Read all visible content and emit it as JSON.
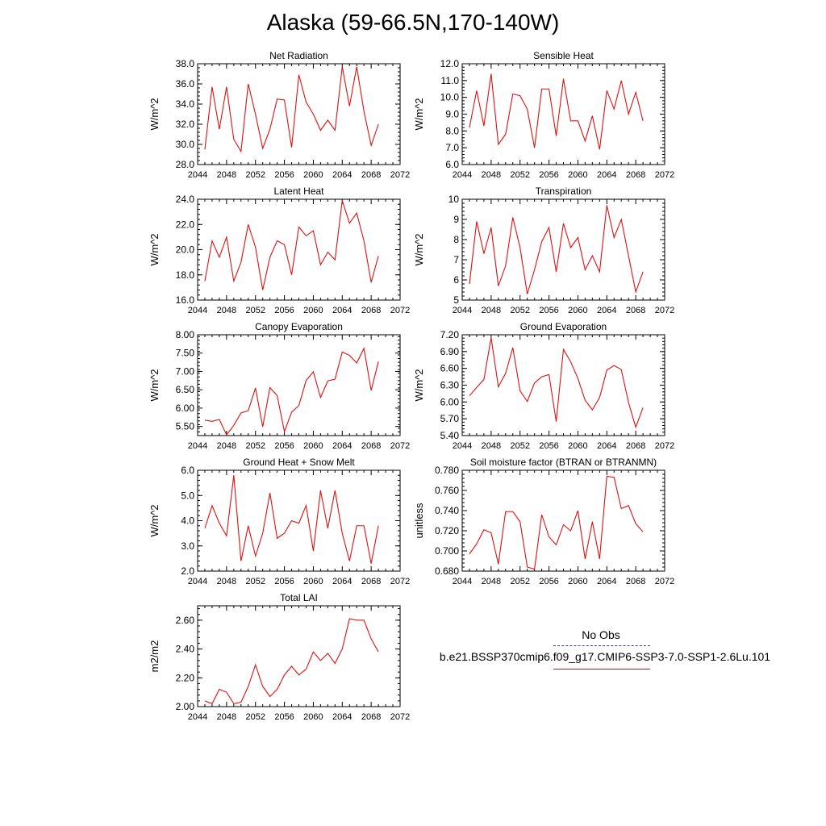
{
  "figure": {
    "title": "Alaska (59-66.5N,170-140W)"
  },
  "legend": {
    "obs_label": "No Obs",
    "model_label": "b.e21.BSSP370cmip6.f09_g17.CMIP6-SSP3-7.0-SSP1-2.6Lu.101",
    "obs_color": "#3a3aa0",
    "model_color": "#e01010"
  },
  "chart_data": [
    {
      "type": "line",
      "title": "Net Radiation",
      "ylabel": "W/m^2",
      "xlim": [
        2044,
        2072
      ],
      "xticks": [
        2044,
        2048,
        2052,
        2056,
        2060,
        2064,
        2068,
        2072
      ],
      "ylim": [
        28.0,
        38.0
      ],
      "yticks": [
        28.0,
        30.0,
        32.0,
        34.0,
        36.0,
        38.0
      ],
      "yfmt": 1,
      "series": [
        {
          "color": "#e01010",
          "x": [
            2045,
            2046,
            2047,
            2048,
            2049,
            2050,
            2051,
            2052,
            2053,
            2054,
            2055,
            2056,
            2057,
            2058,
            2059,
            2060,
            2061,
            2062,
            2063,
            2064,
            2065,
            2066,
            2067,
            2068,
            2069
          ],
          "values": [
            29.5,
            35.7,
            31.5,
            35.7,
            30.5,
            29.3,
            36.0,
            33.0,
            29.6,
            31.5,
            34.5,
            34.4,
            29.7,
            36.9,
            34.2,
            33.0,
            31.4,
            32.4,
            31.4,
            37.7,
            33.8,
            37.7,
            33.3,
            29.9,
            32.0
          ]
        }
      ]
    },
    {
      "type": "line",
      "title": "Sensible Heat",
      "ylabel": "W/m^2",
      "xlim": [
        2044,
        2072
      ],
      "xticks": [
        2044,
        2048,
        2052,
        2056,
        2060,
        2064,
        2068,
        2072
      ],
      "ylim": [
        6.0,
        12.0
      ],
      "yticks": [
        6.0,
        7.0,
        8.0,
        9.0,
        10.0,
        11.0,
        12.0
      ],
      "yfmt": 1,
      "series": [
        {
          "color": "#e01010",
          "x": [
            2045,
            2046,
            2047,
            2048,
            2049,
            2050,
            2051,
            2052,
            2053,
            2054,
            2055,
            2056,
            2057,
            2058,
            2059,
            2060,
            2061,
            2062,
            2063,
            2064,
            2065,
            2066,
            2067,
            2068,
            2069
          ],
          "values": [
            8.2,
            10.4,
            8.3,
            11.4,
            7.2,
            7.8,
            10.2,
            10.1,
            9.3,
            7.0,
            10.5,
            10.5,
            7.7,
            11.1,
            8.6,
            8.6,
            7.4,
            8.9,
            6.9,
            10.4,
            9.3,
            11.0,
            9.0,
            10.3,
            8.6
          ]
        }
      ]
    },
    {
      "type": "line",
      "title": "Latent Heat",
      "ylabel": "W/m^2",
      "xlim": [
        2044,
        2072
      ],
      "xticks": [
        2044,
        2048,
        2052,
        2056,
        2060,
        2064,
        2068,
        2072
      ],
      "ylim": [
        16.0,
        24.0
      ],
      "yticks": [
        16.0,
        18.0,
        20.0,
        22.0,
        24.0
      ],
      "yfmt": 1,
      "series": [
        {
          "color": "#e01010",
          "x": [
            2045,
            2046,
            2047,
            2048,
            2049,
            2050,
            2051,
            2052,
            2053,
            2054,
            2055,
            2056,
            2057,
            2058,
            2059,
            2060,
            2061,
            2062,
            2063,
            2064,
            2065,
            2066,
            2067,
            2068,
            2069
          ],
          "values": [
            17.5,
            20.7,
            19.4,
            21.0,
            17.5,
            19.0,
            22.0,
            20.2,
            16.8,
            19.4,
            20.7,
            20.4,
            18.0,
            21.8,
            21.1,
            21.5,
            18.8,
            19.8,
            19.2,
            23.9,
            22.1,
            22.9,
            20.7,
            17.4,
            19.5
          ]
        }
      ]
    },
    {
      "type": "line",
      "title": "Transpiration",
      "ylabel": "W/m^2",
      "xlim": [
        2044,
        2072
      ],
      "xticks": [
        2044,
        2048,
        2052,
        2056,
        2060,
        2064,
        2068,
        2072
      ],
      "ylim": [
        5,
        10
      ],
      "yticks": [
        5,
        6,
        7,
        8,
        9,
        10
      ],
      "yfmt": 0,
      "series": [
        {
          "color": "#e01010",
          "x": [
            2045,
            2046,
            2047,
            2048,
            2049,
            2050,
            2051,
            2052,
            2053,
            2054,
            2055,
            2056,
            2057,
            2058,
            2059,
            2060,
            2061,
            2062,
            2063,
            2064,
            2065,
            2066,
            2067,
            2068,
            2069
          ],
          "values": [
            5.8,
            8.9,
            7.3,
            8.6,
            5.7,
            6.7,
            9.1,
            7.6,
            5.3,
            6.5,
            7.9,
            8.6,
            6.4,
            8.8,
            7.6,
            8.1,
            6.5,
            7.2,
            6.4,
            9.7,
            8.1,
            9.0,
            7.2,
            5.4,
            6.4
          ]
        }
      ]
    },
    {
      "type": "line",
      "title": "Canopy Evaporation",
      "ylabel": "W/m^2",
      "xlim": [
        2044,
        2072
      ],
      "xticks": [
        2044,
        2048,
        2052,
        2056,
        2060,
        2064,
        2068,
        2072
      ],
      "ylim": [
        5.25,
        8.0
      ],
      "yticks": [
        5.5,
        6.0,
        6.5,
        7.0,
        7.5,
        8.0
      ],
      "yfmt": 2,
      "series": [
        {
          "color": "#e01010",
          "x": [
            2045,
            2046,
            2047,
            2048,
            2049,
            2050,
            2051,
            2052,
            2053,
            2054,
            2055,
            2056,
            2057,
            2058,
            2059,
            2060,
            2061,
            2062,
            2063,
            2064,
            2065,
            2066,
            2067,
            2068,
            2069
          ],
          "values": [
            5.67,
            5.64,
            5.69,
            5.27,
            5.53,
            5.87,
            5.93,
            6.55,
            5.49,
            6.56,
            6.34,
            5.36,
            5.89,
            6.07,
            6.75,
            6.99,
            6.29,
            6.74,
            6.79,
            7.53,
            7.44,
            7.23,
            7.63,
            6.48,
            7.27
          ]
        }
      ]
    },
    {
      "type": "line",
      "title": "Ground Evaporation",
      "ylabel": "W/m^2",
      "xlim": [
        2044,
        2072
      ],
      "xticks": [
        2044,
        2048,
        2052,
        2056,
        2060,
        2064,
        2068,
        2072
      ],
      "ylim": [
        5.4,
        7.2
      ],
      "yticks": [
        5.4,
        5.7,
        6.0,
        6.3,
        6.6,
        6.9,
        7.2
      ],
      "yfmt": 2,
      "series": [
        {
          "color": "#e01010",
          "x": [
            2045,
            2046,
            2047,
            2048,
            2049,
            2050,
            2051,
            2052,
            2053,
            2054,
            2055,
            2056,
            2057,
            2058,
            2059,
            2060,
            2061,
            2062,
            2063,
            2064,
            2065,
            2066,
            2067,
            2068,
            2069
          ],
          "values": [
            6.11,
            6.26,
            6.4,
            7.15,
            6.27,
            6.51,
            6.97,
            6.2,
            6.01,
            6.34,
            6.45,
            6.49,
            5.65,
            6.94,
            6.72,
            6.42,
            6.03,
            5.86,
            6.08,
            6.57,
            6.65,
            6.58,
            5.99,
            5.55,
            5.9
          ]
        }
      ]
    },
    {
      "type": "line",
      "title": "Ground Heat + Snow Melt",
      "ylabel": "W/m^2",
      "xlim": [
        2044,
        2072
      ],
      "xticks": [
        2044,
        2048,
        2052,
        2056,
        2060,
        2064,
        2068,
        2072
      ],
      "ylim": [
        2.0,
        6.0
      ],
      "yticks": [
        2.0,
        3.0,
        4.0,
        5.0,
        6.0
      ],
      "yfmt": 1,
      "series": [
        {
          "color": "#e01010",
          "x": [
            2045,
            2046,
            2047,
            2048,
            2049,
            2050,
            2051,
            2052,
            2053,
            2054,
            2055,
            2056,
            2057,
            2058,
            2059,
            2060,
            2061,
            2062,
            2063,
            2064,
            2065,
            2066,
            2067,
            2068,
            2069
          ],
          "values": [
            3.7,
            4.6,
            3.9,
            3.4,
            5.8,
            2.4,
            3.8,
            2.6,
            3.5,
            5.1,
            3.3,
            3.5,
            4.0,
            3.9,
            4.6,
            2.8,
            5.2,
            3.7,
            5.2,
            3.5,
            2.4,
            3.8,
            3.8,
            2.3,
            3.8
          ]
        }
      ]
    },
    {
      "type": "line",
      "title": "Soil moisture factor (BTRAN or BTRANMN)",
      "ylabel": "unitless",
      "xlim": [
        2044,
        2072
      ],
      "xticks": [
        2044,
        2048,
        2052,
        2056,
        2060,
        2064,
        2068,
        2072
      ],
      "ylim": [
        0.68,
        0.78
      ],
      "yticks": [
        0.68,
        0.7,
        0.72,
        0.74,
        0.76,
        0.78
      ],
      "yfmt": 3,
      "series": [
        {
          "color": "#e01010",
          "x": [
            2045,
            2046,
            2047,
            2048,
            2049,
            2050,
            2051,
            2052,
            2053,
            2054,
            2055,
            2056,
            2057,
            2058,
            2059,
            2060,
            2061,
            2062,
            2063,
            2064,
            2065,
            2066,
            2067,
            2068,
            2069
          ],
          "values": [
            0.697,
            0.707,
            0.721,
            0.718,
            0.687,
            0.739,
            0.739,
            0.729,
            0.684,
            0.682,
            0.736,
            0.714,
            0.706,
            0.726,
            0.72,
            0.74,
            0.692,
            0.729,
            0.692,
            0.774,
            0.773,
            0.742,
            0.745,
            0.727,
            0.719
          ]
        }
      ]
    },
    {
      "type": "line",
      "title": "Total LAI",
      "ylabel": "m2/m2",
      "xlim": [
        2044,
        2072
      ],
      "xticks": [
        2044,
        2048,
        2052,
        2056,
        2060,
        2064,
        2068,
        2072
      ],
      "ylim": [
        2.0,
        2.7
      ],
      "yticks": [
        2.0,
        2.2,
        2.4,
        2.6
      ],
      "yfmt": 2,
      "series": [
        {
          "color": "#e01010",
          "x": [
            2045,
            2046,
            2047,
            2048,
            2049,
            2050,
            2051,
            2052,
            2053,
            2054,
            2055,
            2056,
            2057,
            2058,
            2059,
            2060,
            2061,
            2062,
            2063,
            2064,
            2065,
            2066,
            2067,
            2068,
            2069
          ],
          "values": [
            2.04,
            2.02,
            2.12,
            2.1,
            2.02,
            2.03,
            2.14,
            2.29,
            2.14,
            2.07,
            2.12,
            2.22,
            2.28,
            2.22,
            2.26,
            2.38,
            2.32,
            2.37,
            2.3,
            2.4,
            2.61,
            2.6,
            2.6,
            2.47,
            2.38
          ]
        }
      ]
    }
  ]
}
